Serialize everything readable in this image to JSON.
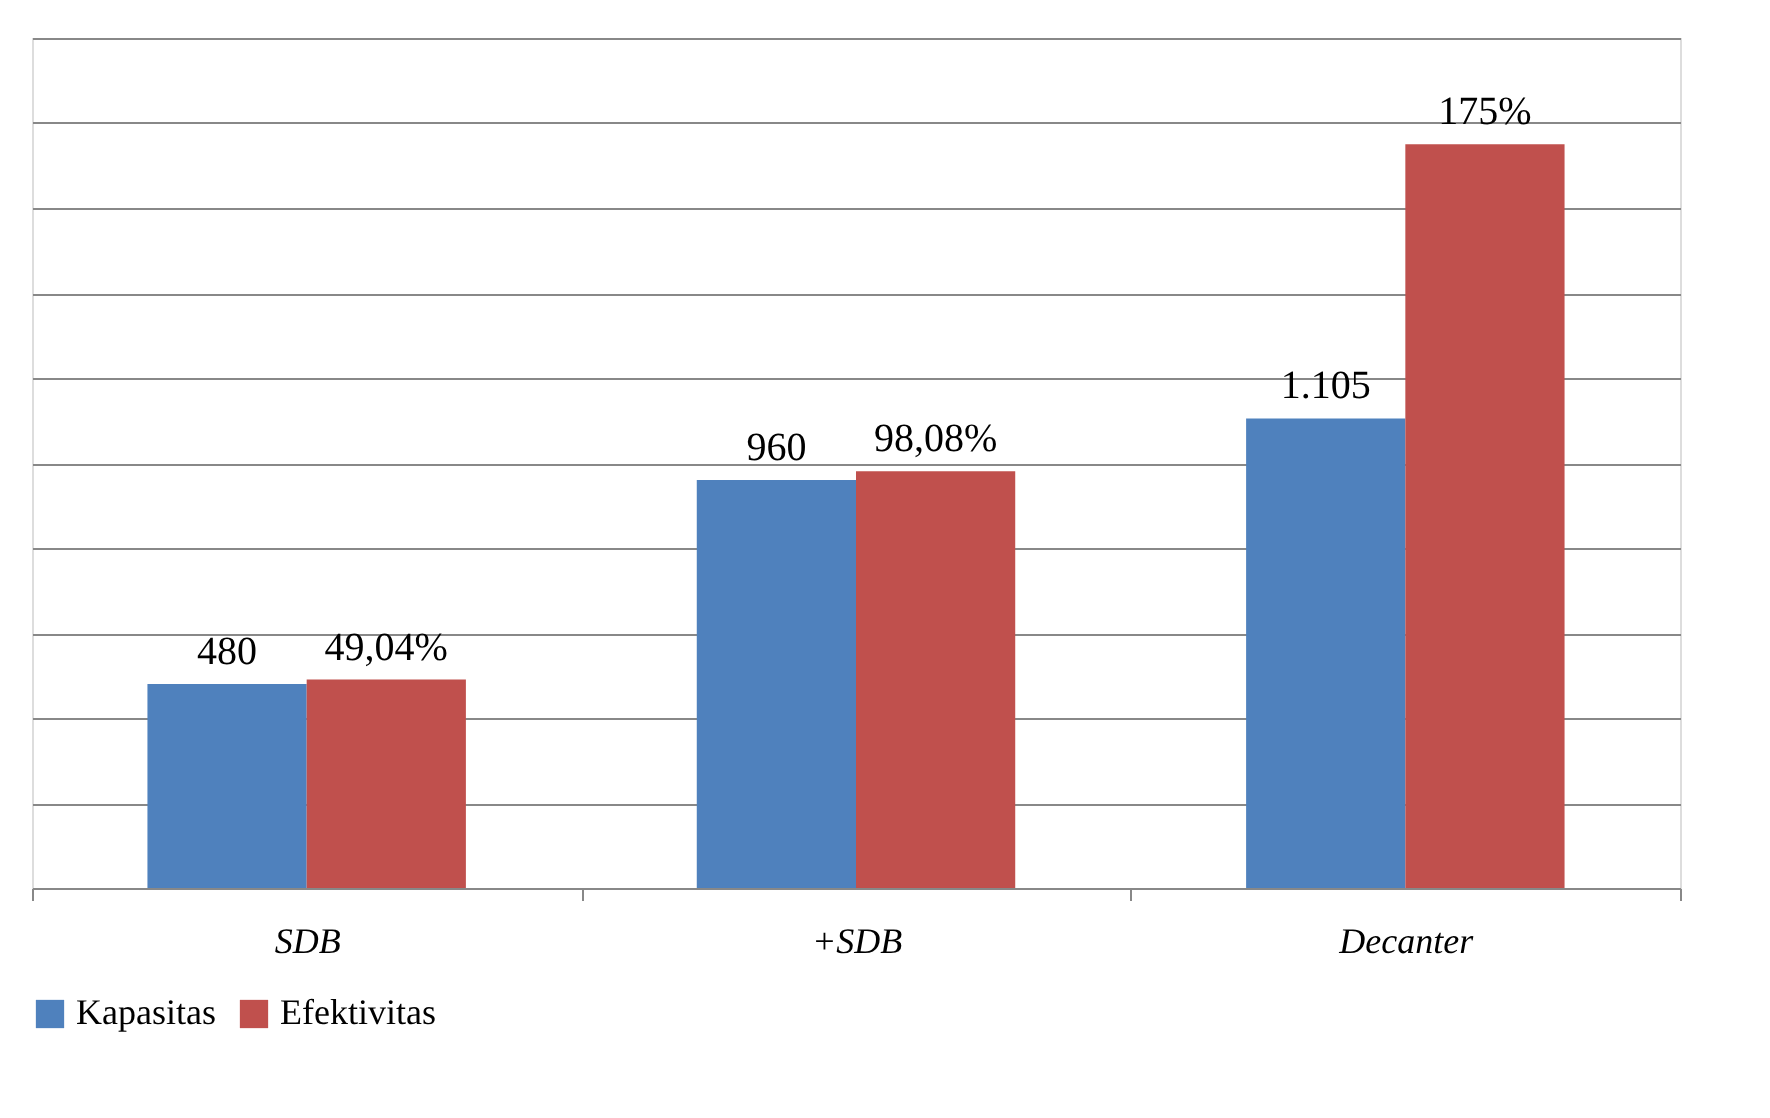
{
  "chart_data": {
    "type": "bar",
    "categories": [
      "SDB",
      "+SDB",
      "Decanter"
    ],
    "series": [
      {
        "name": "Kapasitas",
        "color": "#4f81bd",
        "values": [
          480,
          960,
          1105
        ],
        "value_labels": [
          "480",
          "960",
          "1.105"
        ]
      },
      {
        "name": "Efektivitas",
        "color": "#c0504d",
        "axis": "y2",
        "values": [
          49.04,
          98.08,
          175
        ],
        "value_labels": [
          "49,04%",
          "98,08%",
          "175%"
        ]
      }
    ],
    "ylim": [
      0,
      2000
    ],
    "yticks": [
      {
        "value": 0,
        "label": null
      },
      {
        "value": 200,
        "label": null
      },
      {
        "value": 400,
        "label": null
      },
      {
        "value": 600,
        "label": null
      },
      {
        "value": 800,
        "label": null
      },
      {
        "value": 1000,
        "label": null
      },
      {
        "value": 1200,
        "label": null
      },
      {
        "value": 1400,
        "label": null
      },
      {
        "value": 1600,
        "label": null
      },
      {
        "value": 1800,
        "label": null
      },
      {
        "value": 2000,
        "label": null
      }
    ],
    "y2lim": [
      0,
      200
    ],
    "grid": "y",
    "legend": "bottom"
  }
}
